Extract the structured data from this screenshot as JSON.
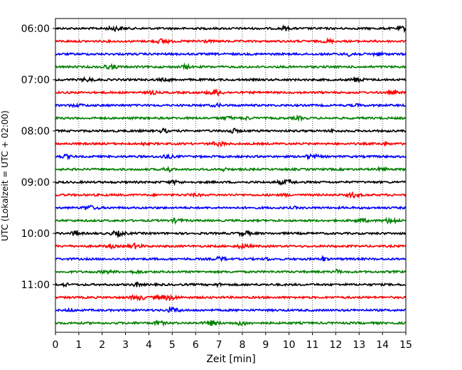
{
  "chart_data": {
    "type": "line",
    "title": "",
    "xlabel": "Zeit  [min]",
    "ylabel": "UTC (Lokalzeit = UTC + 02:00)",
    "xlim": [
      0,
      15
    ],
    "x_ticks": [
      "0",
      "1",
      "2",
      "3",
      "4",
      "5",
      "6",
      "7",
      "8",
      "9",
      "10",
      "11",
      "12",
      "13",
      "14",
      "15"
    ],
    "y_ticks": [
      "06:00",
      "07:00",
      "08:00",
      "09:00",
      "10:00",
      "11:00"
    ],
    "grid": "vertical-dotted",
    "legend": "none",
    "trace_interval_minutes": 15,
    "first_trace_start": "06:00",
    "colors": [
      "#000000",
      "#ff0000",
      "#0000ff",
      "#008000"
    ],
    "series": [
      {
        "start": "06:00",
        "color": "#000000"
      },
      {
        "start": "06:15",
        "color": "#ff0000"
      },
      {
        "start": "06:30",
        "color": "#0000ff"
      },
      {
        "start": "06:45",
        "color": "#008000"
      },
      {
        "start": "07:00",
        "color": "#000000"
      },
      {
        "start": "07:15",
        "color": "#ff0000"
      },
      {
        "start": "07:30",
        "color": "#0000ff"
      },
      {
        "start": "07:45",
        "color": "#008000"
      },
      {
        "start": "08:00",
        "color": "#000000"
      },
      {
        "start": "08:15",
        "color": "#ff0000"
      },
      {
        "start": "08:30",
        "color": "#0000ff"
      },
      {
        "start": "08:45",
        "color": "#008000"
      },
      {
        "start": "09:00",
        "color": "#000000"
      },
      {
        "start": "09:15",
        "color": "#ff0000"
      },
      {
        "start": "09:30",
        "color": "#0000ff"
      },
      {
        "start": "09:45",
        "color": "#008000"
      },
      {
        "start": "10:00",
        "color": "#000000"
      },
      {
        "start": "10:15",
        "color": "#ff0000"
      },
      {
        "start": "10:30",
        "color": "#0000ff"
      },
      {
        "start": "10:45",
        "color": "#008000"
      },
      {
        "start": "11:00",
        "color": "#000000"
      },
      {
        "start": "11:15",
        "color": "#ff0000"
      },
      {
        "start": "11:30",
        "color": "#0000ff"
      },
      {
        "start": "11:45",
        "color": "#008000"
      }
    ]
  }
}
